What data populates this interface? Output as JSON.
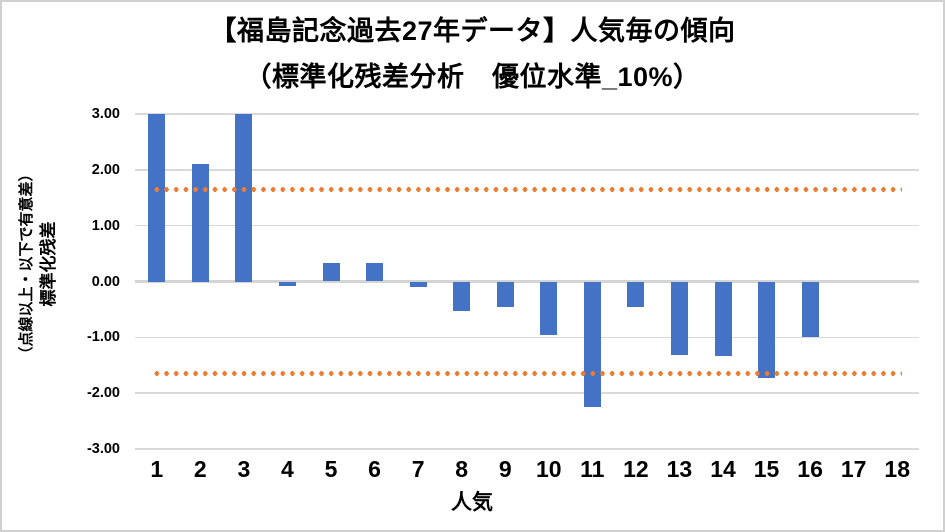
{
  "title": {
    "line1": "【福島記念過去27年データ】人気毎の傾向",
    "line2": "（標準化残差分析　優位水準_10%）"
  },
  "axes": {
    "y": {
      "label_main": "標準化残差",
      "label_sub": "（点線以上・以下で有意差）",
      "min": -3.0,
      "max": 3.0,
      "tick_step": 1.0,
      "tick_labels": [
        "3.00",
        "2.00",
        "1.00",
        "0.00",
        "-1.00",
        "-2.00",
        "-3.00"
      ]
    },
    "x": {
      "label": "人気",
      "tick_labels": [
        "1",
        "2",
        "3",
        "4",
        "5",
        "6",
        "7",
        "8",
        "9",
        "10",
        "11",
        "12",
        "13",
        "14",
        "15",
        "16",
        "17",
        "18"
      ]
    }
  },
  "chart_data": {
    "type": "bar",
    "title": "【福島記念過去27年データ】人気毎の傾向",
    "subtitle": "（標準化残差分析　優位水準_10%）",
    "xlabel": "人気",
    "ylabel": "標準化残差（点線以上・以下で有意差）",
    "categories": [
      "1",
      "2",
      "3",
      "4",
      "5",
      "6",
      "7",
      "8",
      "9",
      "10",
      "11",
      "12",
      "13",
      "14",
      "15",
      "16",
      "17",
      "18"
    ],
    "values": [
      3.0,
      2.1,
      3.0,
      -0.08,
      0.33,
      0.34,
      -0.1,
      -0.53,
      -0.45,
      -0.96,
      -2.25,
      -0.45,
      -1.32,
      -1.33,
      -1.73,
      -1.0,
      0,
      0
    ],
    "ylim": [
      -3.0,
      3.0
    ],
    "ytick_step": 1.0,
    "ytick_format_decimals": 2,
    "grid": true,
    "legend": "none",
    "reference_lines": [
      {
        "name": "upper-significance",
        "value": 1.645,
        "style": "dotted",
        "color": "#ED7D31"
      },
      {
        "name": "lower-significance",
        "value": -1.645,
        "style": "dotted",
        "color": "#ED7D31"
      }
    ],
    "bar_color": "#4472C4"
  },
  "colors": {
    "bar": "#4472C4",
    "dotted_line": "#ED7D31",
    "gridline": "#D9D9D9",
    "zero_axis_line": "#D4D4D4",
    "border": "#D0D0D0",
    "text": "#000000",
    "background": "#FFFFFF"
  }
}
